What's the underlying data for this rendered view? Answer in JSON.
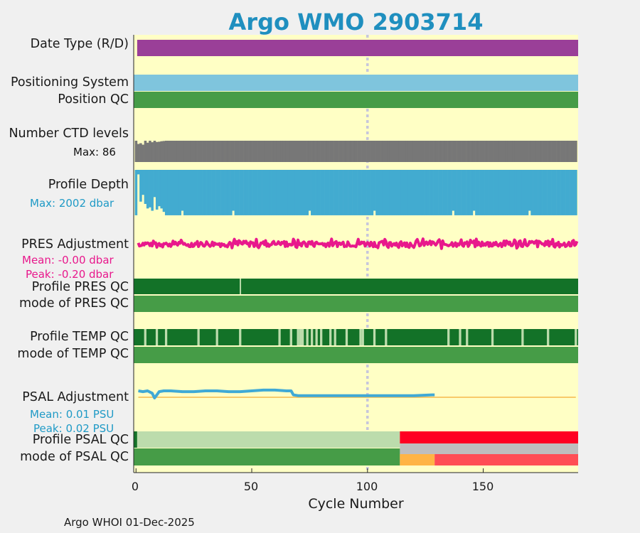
{
  "title": "Argo WMO 2903714",
  "footer": "Argo WHOI 01-Dec-2025",
  "rows": {
    "date_type": "Date Type (R/D)",
    "positioning_system": "Positioning System",
    "position_qc": "Position QC",
    "ctd_levels": "Number CTD levels",
    "ctd_max": "Max: 86",
    "profile_depth": "Profile Depth",
    "depth_max": "Max: 2002 dbar",
    "pres_adjustment": "PRES Adjustment",
    "pres_mean": "Mean: -0.00 dbar",
    "pres_peak": "Peak: -0.20 dbar",
    "profile_pres_qc": "Profile PRES QC",
    "mode_pres_qc": "mode of PRES QC",
    "profile_temp_qc": "Profile TEMP QC",
    "mode_temp_qc": "mode of TEMP QC",
    "psal_adjustment": "PSAL Adjustment",
    "psal_mean": "Mean: 0.01 PSU",
    "psal_peak": "Peak: 0.02 PSU",
    "profile_psal_qc": "Profile PSAL QC",
    "mode_psal_qc": "mode of PSAL QC"
  },
  "chart_data": {
    "type": "table",
    "xlabel": "Cycle Number",
    "xlim": [
      -1,
      191
    ],
    "xticks": [
      0,
      50,
      100,
      150
    ],
    "reference_cycle": 100,
    "n_cycles": 191,
    "colors": {
      "background": "#ffffc5",
      "date_type": "#9a3f98",
      "positioning_system": "#7fc5dd",
      "good_qc": "#469c47",
      "profile_qc_A": "#137228",
      "profile_qc_light": "#bcdcac",
      "ctd_bar": "#777777",
      "depth_bar": "#42abd0",
      "pres_line": "#e8188c",
      "psal_line": "#40a9d5",
      "psal_zero": "#f6b84c",
      "psal_qc_red": "#ff0022",
      "psal_mode_grey": "#bebebe",
      "psal_mode_orange": "#ffb445",
      "psal_mode_red": "#ff4d55",
      "dotted_line": "#c6c6dc"
    },
    "ctd_levels": {
      "max": 86,
      "typical": 86,
      "low_cycles": {
        "1": 73,
        "2": 76,
        "3": 70,
        "5": 78,
        "7": 80,
        "9": 81,
        "10": 82,
        "11": 84,
        "12": 85
      }
    },
    "profile_depth": {
      "max": 2002,
      "typical": 2000,
      "short_cycles": {
        "1": 200,
        "2": 1400,
        "3": 1100,
        "4": 1500,
        "5": 1700,
        "6": 1650,
        "7": 1800,
        "8": 1200,
        "9": 1750,
        "10": 1600,
        "11": 1700,
        "12": 1850
      }
    },
    "pres_adjustment": {
      "mean": -0.0,
      "peak": -0.2,
      "range": [
        -0.3,
        0.3
      ]
    },
    "psal_adjustment": {
      "mean": 0.01,
      "peak": 0.02,
      "range": [
        -0.015,
        0.035
      ],
      "x": [
        1,
        3,
        5,
        7,
        8,
        9,
        10,
        12,
        15,
        20,
        25,
        30,
        35,
        40,
        45,
        50,
        55,
        60,
        65,
        67,
        68,
        70,
        80,
        90,
        100,
        110,
        120,
        128,
        129
      ],
      "y": [
        0.021,
        0.02,
        0.021,
        0.018,
        0.012,
        0.016,
        0.02,
        0.021,
        0.021,
        0.02,
        0.02,
        0.021,
        0.021,
        0.02,
        0.02,
        0.021,
        0.022,
        0.022,
        0.021,
        0.021,
        0.016,
        0.015,
        0.015,
        0.015,
        0.015,
        0.015,
        0.015,
        0.016,
        0.016
      ],
      "zero_line_x": [
        1,
        190
      ]
    },
    "profile_pres_qc_light_cycles": [
      45
    ],
    "profile_temp_qc_light_cycles": [
      4,
      9,
      13,
      27,
      35,
      45,
      62,
      67,
      71,
      67,
      70,
      72,
      74,
      76,
      78,
      80,
      84,
      86,
      91,
      97,
      98,
      103,
      108,
      135,
      140,
      143,
      154,
      167,
      178,
      190
    ],
    "psal_qc": {
      "profile_light_until": 114,
      "profile_red_from": 114,
      "mode_orange_from": 114,
      "mode_orange_to": 129,
      "mode_red_from": 129
    }
  }
}
